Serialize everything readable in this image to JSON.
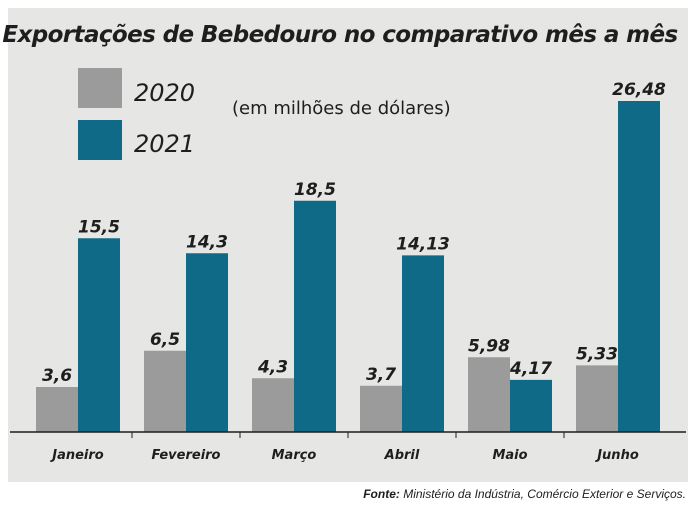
{
  "chart_data": {
    "type": "bar",
    "title": "Exportações de Bebedouro no comparativo mês a mês",
    "subtitle": "(em milhões de dólares)",
    "categories": [
      "Janeiro",
      "Fevereiro",
      "Março",
      "Abril",
      "Maio",
      "Junho"
    ],
    "series": [
      {
        "name": "2020",
        "color": "#9b9b9b",
        "values": [
          3.6,
          6.5,
          4.3,
          3.7,
          5.98,
          5.33
        ],
        "labels": [
          "3,6",
          "6,5",
          "4,3",
          "3,7",
          "5,98",
          "5,33"
        ]
      },
      {
        "name": "2021",
        "color": "#0e6a86",
        "values": [
          15.5,
          14.3,
          18.5,
          14.13,
          4.17,
          26.48
        ],
        "labels": [
          "15,5",
          "14,3",
          "18,5",
          "14,13",
          "4,17",
          "26,48"
        ]
      }
    ],
    "legend_position": "top-left",
    "grid": false,
    "ylim": [
      0,
      26.48
    ]
  },
  "source": {
    "label": "Fonte:",
    "text": "Ministério da Indústria, Comércio Exterior e Serviços."
  }
}
